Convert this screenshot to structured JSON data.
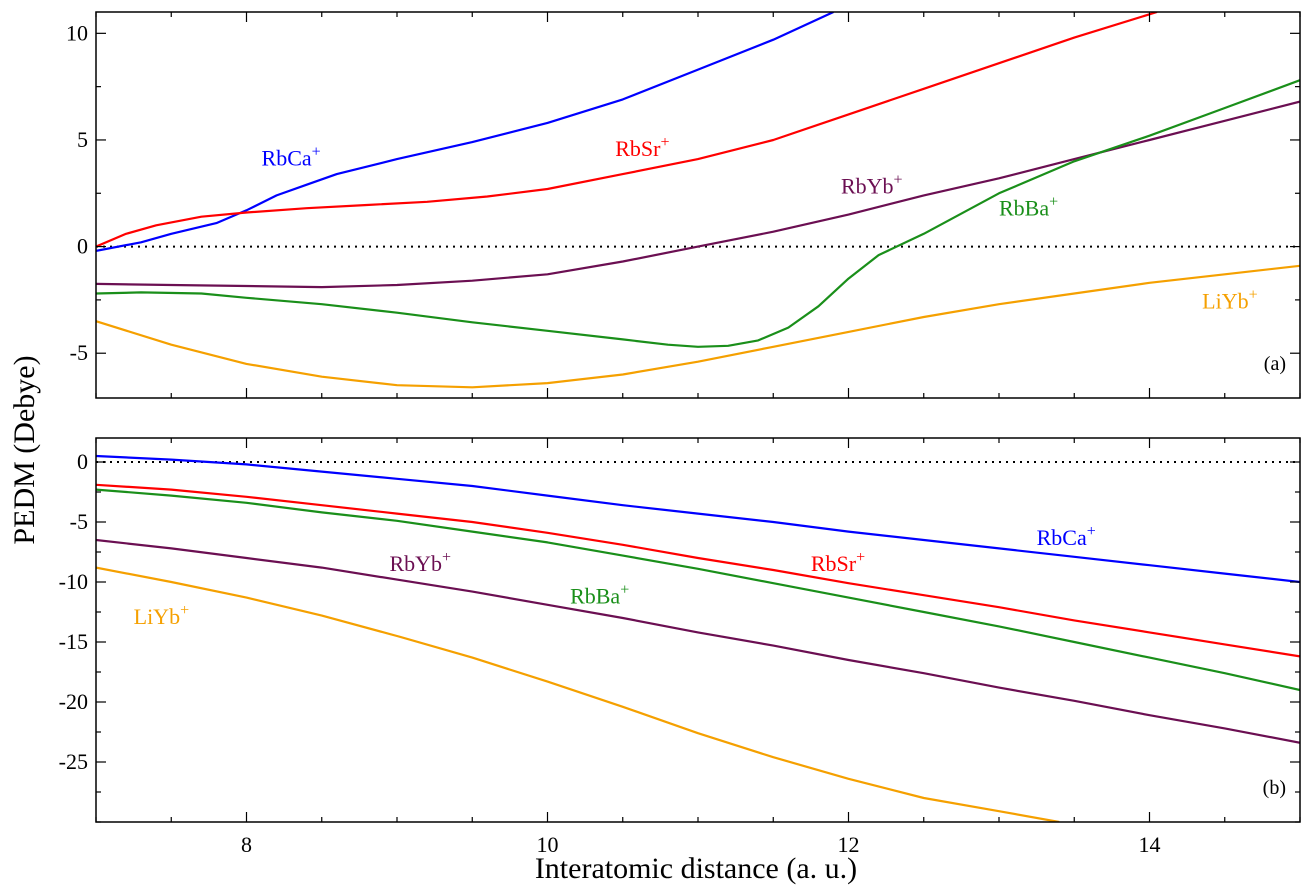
{
  "ylabel": "PEDM (Debye)",
  "xlabel": "Interatomic distance (a. u.)",
  "chart_data": [
    {
      "type": "line",
      "panel_label": "(a)",
      "xlim": [
        7,
        15
      ],
      "ylim": [
        -7.1,
        11
      ],
      "x_ticks": [
        8,
        10,
        12,
        14
      ],
      "y_ticks": [
        -5,
        0,
        5,
        10
      ],
      "y_tick_labels": [
        "-5",
        "0",
        "5",
        "10"
      ],
      "zero_line": true,
      "series": [
        {
          "name": "RbCa+",
          "label_base": "RbCa",
          "color": "#0000ff",
          "points": [
            [
              7.0,
              -0.2
            ],
            [
              7.3,
              0.2
            ],
            [
              7.5,
              0.6
            ],
            [
              7.8,
              1.1
            ],
            [
              8.0,
              1.7
            ],
            [
              8.2,
              2.4
            ],
            [
              8.4,
              2.9
            ],
            [
              8.6,
              3.4
            ],
            [
              9.0,
              4.1
            ],
            [
              9.5,
              4.9
            ],
            [
              10.0,
              5.8
            ],
            [
              10.5,
              6.9
            ],
            [
              11.0,
              8.3
            ],
            [
              11.5,
              9.7
            ],
            [
              11.9,
              11.0
            ]
          ]
        },
        {
          "name": "RbSr+",
          "label_base": "RbSr",
          "color": "#ff0000",
          "points": [
            [
              7.0,
              0.0
            ],
            [
              7.2,
              0.6
            ],
            [
              7.4,
              1.0
            ],
            [
              7.7,
              1.4
            ],
            [
              8.0,
              1.6
            ],
            [
              8.4,
              1.8
            ],
            [
              8.8,
              1.95
            ],
            [
              9.2,
              2.1
            ],
            [
              9.6,
              2.35
            ],
            [
              10.0,
              2.7
            ],
            [
              10.5,
              3.4
            ],
            [
              11.0,
              4.1
            ],
            [
              11.5,
              5.0
            ],
            [
              12.0,
              6.2
            ],
            [
              12.5,
              7.4
            ],
            [
              13.0,
              8.6
            ],
            [
              13.5,
              9.8
            ],
            [
              14.05,
              11.0
            ]
          ]
        },
        {
          "name": "RbYb+",
          "label_base": "RbYb",
          "color": "#6b0f52",
          "points": [
            [
              7.0,
              -1.75
            ],
            [
              7.5,
              -1.8
            ],
            [
              8.0,
              -1.85
            ],
            [
              8.5,
              -1.9
            ],
            [
              9.0,
              -1.8
            ],
            [
              9.5,
              -1.6
            ],
            [
              10.0,
              -1.3
            ],
            [
              10.5,
              -0.7
            ],
            [
              11.0,
              0.0
            ],
            [
              11.5,
              0.7
            ],
            [
              12.0,
              1.5
            ],
            [
              12.5,
              2.4
            ],
            [
              13.0,
              3.2
            ],
            [
              13.5,
              4.1
            ],
            [
              14.0,
              5.0
            ],
            [
              14.5,
              5.9
            ],
            [
              15.0,
              6.8
            ]
          ]
        },
        {
          "name": "RbBa+",
          "label_base": "RbBa",
          "color": "#1a8f1a",
          "points": [
            [
              7.0,
              -2.2
            ],
            [
              7.3,
              -2.15
            ],
            [
              7.7,
              -2.2
            ],
            [
              8.0,
              -2.4
            ],
            [
              8.5,
              -2.7
            ],
            [
              9.0,
              -3.1
            ],
            [
              9.5,
              -3.55
            ],
            [
              10.0,
              -3.95
            ],
            [
              10.5,
              -4.35
            ],
            [
              10.8,
              -4.6
            ],
            [
              11.0,
              -4.7
            ],
            [
              11.2,
              -4.65
            ],
            [
              11.4,
              -4.4
            ],
            [
              11.6,
              -3.8
            ],
            [
              11.8,
              -2.8
            ],
            [
              12.0,
              -1.5
            ],
            [
              12.2,
              -0.4
            ],
            [
              12.5,
              0.6
            ],
            [
              13.0,
              2.5
            ],
            [
              13.5,
              4.0
            ],
            [
              14.0,
              5.2
            ],
            [
              14.5,
              6.5
            ],
            [
              15.0,
              7.8
            ]
          ]
        },
        {
          "name": "LiYb+",
          "label_base": "LiYb",
          "color": "#f5a000",
          "points": [
            [
              7.0,
              -3.5
            ],
            [
              7.5,
              -4.6
            ],
            [
              8.0,
              -5.5
            ],
            [
              8.5,
              -6.1
            ],
            [
              9.0,
              -6.5
            ],
            [
              9.5,
              -6.6
            ],
            [
              10.0,
              -6.4
            ],
            [
              10.5,
              -6.0
            ],
            [
              11.0,
              -5.4
            ],
            [
              11.5,
              -4.7
            ],
            [
              12.0,
              -4.0
            ],
            [
              12.5,
              -3.3
            ],
            [
              13.0,
              -2.7
            ],
            [
              13.5,
              -2.2
            ],
            [
              14.0,
              -1.7
            ],
            [
              14.5,
              -1.3
            ],
            [
              15.0,
              -0.9
            ]
          ]
        }
      ],
      "labels": [
        {
          "series": "RbCa+",
          "text": "RbCa",
          "sup": "+",
          "x": 8.1,
          "y": 3.8
        },
        {
          "series": "RbSr+",
          "text": "RbSr",
          "sup": "+",
          "x": 10.45,
          "y": 4.25
        },
        {
          "series": "RbYb+",
          "text": "RbYb",
          "sup": "+",
          "x": 11.95,
          "y": 2.5
        },
        {
          "series": "RbBa+",
          "text": "RbBa",
          "sup": "+",
          "x": 13.0,
          "y": 1.45
        },
        {
          "series": "LiYb+",
          "text": "LiYb",
          "sup": "+",
          "x": 14.35,
          "y": -2.9
        }
      ]
    },
    {
      "type": "line",
      "panel_label": "(b)",
      "xlim": [
        7,
        15
      ],
      "ylim": [
        -30,
        2
      ],
      "x_ticks": [
        8,
        10,
        12,
        14
      ],
      "x_tick_labels": [
        "8",
        "10",
        "12",
        "14"
      ],
      "y_ticks": [
        -25,
        -20,
        -15,
        -10,
        -5,
        0
      ],
      "y_tick_labels": [
        "-25",
        "-20",
        "-15",
        "-10",
        "-5",
        "0"
      ],
      "zero_line": true,
      "series": [
        {
          "name": "RbCa+",
          "label_base": "RbCa",
          "color": "#0000ff",
          "points": [
            [
              7.0,
              0.5
            ],
            [
              7.5,
              0.2
            ],
            [
              8.0,
              -0.2
            ],
            [
              8.5,
              -0.8
            ],
            [
              9.0,
              -1.4
            ],
            [
              9.5,
              -2.0
            ],
            [
              10.0,
              -2.8
            ],
            [
              10.5,
              -3.6
            ],
            [
              11.0,
              -4.3
            ],
            [
              11.5,
              -5.0
            ],
            [
              12.0,
              -5.8
            ],
            [
              12.5,
              -6.5
            ],
            [
              13.0,
              -7.2
            ],
            [
              13.5,
              -7.9
            ],
            [
              14.0,
              -8.6
            ],
            [
              14.5,
              -9.3
            ],
            [
              15.0,
              -10.0
            ]
          ]
        },
        {
          "name": "RbSr+",
          "label_base": "RbSr",
          "color": "#ff0000",
          "points": [
            [
              7.0,
              -1.9
            ],
            [
              7.5,
              -2.3
            ],
            [
              8.0,
              -2.9
            ],
            [
              8.5,
              -3.6
            ],
            [
              9.0,
              -4.3
            ],
            [
              9.5,
              -5.0
            ],
            [
              10.0,
              -5.9
            ],
            [
              10.5,
              -6.9
            ],
            [
              11.0,
              -8.0
            ],
            [
              11.5,
              -9.0
            ],
            [
              12.0,
              -10.1
            ],
            [
              12.5,
              -11.1
            ],
            [
              13.0,
              -12.1
            ],
            [
              13.5,
              -13.2
            ],
            [
              14.0,
              -14.2
            ],
            [
              14.5,
              -15.2
            ],
            [
              15.0,
              -16.2
            ]
          ]
        },
        {
          "name": "RbBa+",
          "label_base": "RbBa",
          "color": "#1a8f1a",
          "points": [
            [
              7.0,
              -2.3
            ],
            [
              7.5,
              -2.8
            ],
            [
              8.0,
              -3.4
            ],
            [
              8.5,
              -4.2
            ],
            [
              9.0,
              -4.9
            ],
            [
              9.5,
              -5.8
            ],
            [
              10.0,
              -6.7
            ],
            [
              10.5,
              -7.8
            ],
            [
              11.0,
              -8.9
            ],
            [
              11.5,
              -10.1
            ],
            [
              12.0,
              -11.3
            ],
            [
              12.5,
              -12.5
            ],
            [
              13.0,
              -13.7
            ],
            [
              13.5,
              -15.0
            ],
            [
              14.0,
              -16.3
            ],
            [
              14.5,
              -17.6
            ],
            [
              15.0,
              -19.0
            ]
          ]
        },
        {
          "name": "RbYb+",
          "label_base": "RbYb",
          "color": "#6b0f52",
          "points": [
            [
              7.0,
              -6.5
            ],
            [
              7.5,
              -7.2
            ],
            [
              8.0,
              -8.0
            ],
            [
              8.5,
              -8.8
            ],
            [
              9.0,
              -9.8
            ],
            [
              9.5,
              -10.8
            ],
            [
              10.0,
              -11.9
            ],
            [
              10.5,
              -13.0
            ],
            [
              11.0,
              -14.2
            ],
            [
              11.5,
              -15.3
            ],
            [
              12.0,
              -16.5
            ],
            [
              12.5,
              -17.6
            ],
            [
              13.0,
              -18.8
            ],
            [
              13.5,
              -19.9
            ],
            [
              14.0,
              -21.1
            ],
            [
              14.5,
              -22.2
            ],
            [
              15.0,
              -23.4
            ]
          ]
        },
        {
          "name": "LiYb+",
          "label_base": "LiYb",
          "color": "#f5a000",
          "points": [
            [
              7.0,
              -8.8
            ],
            [
              7.5,
              -10.0
            ],
            [
              8.0,
              -11.3
            ],
            [
              8.5,
              -12.8
            ],
            [
              9.0,
              -14.5
            ],
            [
              9.5,
              -16.3
            ],
            [
              10.0,
              -18.3
            ],
            [
              10.5,
              -20.4
            ],
            [
              11.0,
              -22.6
            ],
            [
              11.5,
              -24.6
            ],
            [
              12.0,
              -26.4
            ],
            [
              12.5,
              -28.0
            ],
            [
              13.0,
              -29.1
            ],
            [
              13.4,
              -30.0
            ]
          ]
        }
      ],
      "labels": [
        {
          "series": "RbCa+",
          "text": "RbCa",
          "sup": "+",
          "x": 13.25,
          "y": -6.9
        },
        {
          "series": "RbSr+",
          "text": "RbSr",
          "sup": "+",
          "x": 11.75,
          "y": -9.1
        },
        {
          "series": "RbBa+",
          "text": "RbBa",
          "sup": "+",
          "x": 10.15,
          "y": -11.8
        },
        {
          "series": "RbYb+",
          "text": "RbYb",
          "sup": "+",
          "x": 8.95,
          "y": -9.1
        },
        {
          "series": "LiYb+",
          "text": "LiYb",
          "sup": "+",
          "x": 7.25,
          "y": -13.5
        }
      ]
    }
  ]
}
